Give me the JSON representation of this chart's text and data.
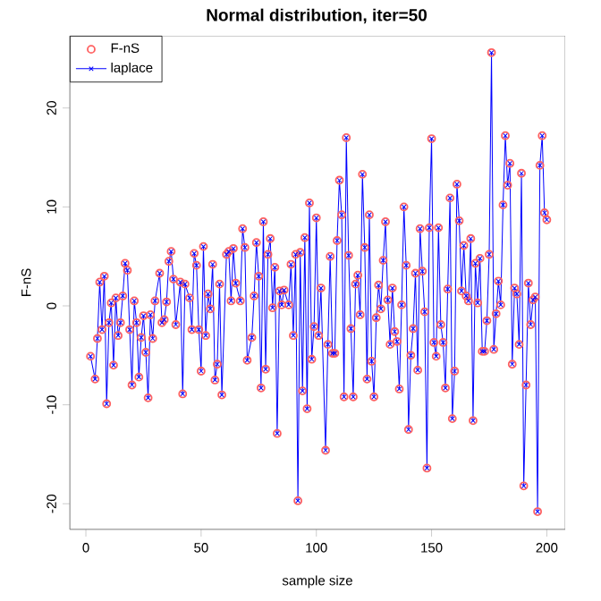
{
  "chart_data": {
    "type": "line",
    "title": "Normal distribution, iter=50",
    "xlabel": "sample size",
    "ylabel": "F-nS",
    "x": [
      2,
      4,
      5,
      6,
      7,
      8,
      9,
      10,
      11,
      12,
      13,
      14,
      15,
      16,
      17,
      18,
      19,
      20,
      21,
      22,
      23,
      24,
      25,
      26,
      27,
      28,
      29,
      30,
      32,
      33,
      34,
      35,
      36,
      37,
      38,
      39,
      41,
      42,
      43,
      45,
      46,
      47,
      48,
      49,
      50,
      51,
      52,
      53,
      54,
      55,
      56,
      57,
      58,
      59,
      61,
      62,
      63,
      64,
      65,
      67,
      68,
      69,
      70,
      72,
      73,
      74,
      75,
      76,
      77,
      78,
      79,
      80,
      81,
      82,
      83,
      84,
      85,
      86,
      88,
      89,
      90,
      91,
      92,
      93,
      94,
      95,
      96,
      97,
      98,
      99,
      100,
      101,
      102,
      104,
      105,
      106,
      107,
      108,
      109,
      110,
      111,
      112,
      113,
      114,
      115,
      116,
      117,
      118,
      119,
      120,
      121,
      122,
      123,
      124,
      125,
      126,
      127,
      128,
      129,
      130,
      131,
      132,
      133,
      134,
      135,
      136,
      137,
      138,
      139,
      140,
      141,
      142,
      143,
      144,
      145,
      146,
      147,
      148,
      149,
      150,
      151,
      152,
      153,
      154,
      155,
      156,
      157,
      158,
      159,
      160,
      161,
      162,
      163,
      164,
      165,
      166,
      167,
      168,
      169,
      170,
      171,
      172,
      173,
      174,
      175,
      176,
      177,
      178,
      179,
      180,
      181,
      182,
      183,
      184,
      185,
      186,
      187,
      188,
      189,
      190,
      191,
      192,
      193,
      194,
      195,
      196,
      197,
      198,
      199,
      200
    ],
    "series": [
      {
        "name": "F-nS",
        "type": "scatter",
        "marker": "circle",
        "color": "#ff6060",
        "values": [
          -5.1,
          -7.4,
          -3.3,
          2.4,
          -2.4,
          3.0,
          -9.9,
          -1.7,
          0.3,
          -6.0,
          0.8,
          -3.0,
          -1.7,
          1.0,
          4.3,
          3.6,
          -2.4,
          -8.0,
          0.5,
          -1.7,
          -7.2,
          -3.2,
          -1.0,
          -4.7,
          -9.3,
          -0.9,
          -3.3,
          0.5,
          3.3,
          -1.7,
          -1.4,
          0.4,
          4.5,
          5.5,
          2.7,
          -1.9,
          2.4,
          -8.9,
          2.2,
          0.8,
          -2.4,
          5.3,
          4.1,
          -2.4,
          -6.6,
          6.0,
          -3.0,
          1.2,
          -0.3,
          4.2,
          -7.5,
          -5.9,
          2.2,
          -9.0,
          5.2,
          5.5,
          0.5,
          5.8,
          2.3,
          0.5,
          7.8,
          5.9,
          -5.5,
          -3.2,
          1.0,
          6.4,
          3.0,
          -8.3,
          8.5,
          -6.4,
          5.2,
          6.8,
          -0.2,
          3.9,
          -12.9,
          1.5,
          0.1,
          1.6,
          0.1,
          4.2,
          -3.0,
          5.2,
          -19.7,
          5.4,
          -8.6,
          6.9,
          -10.4,
          10.4,
          -5.4,
          -2.1,
          8.9,
          -3.0,
          1.8,
          -14.6,
          -3.9,
          5.0,
          -4.8,
          -4.8,
          6.6,
          12.7,
          9.2,
          -9.2,
          17.0,
          5.1,
          -2.3,
          -9.2,
          2.2,
          3.1,
          -0.9,
          13.3,
          5.9,
          -7.4,
          9.2,
          -5.6,
          -9.2,
          -1.2,
          2.1,
          -0.3,
          4.6,
          8.5,
          0.6,
          -3.9,
          1.8,
          -2.6,
          -3.6,
          -8.4,
          0.1,
          10.0,
          4.1,
          -12.5,
          -5.0,
          -2.3,
          3.3,
          -6.5,
          7.8,
          3.5,
          -0.6,
          -16.4,
          7.9,
          16.9,
          -3.7,
          -5.1,
          7.9,
          -1.9,
          -3.7,
          -8.3,
          1.7,
          10.9,
          -11.4,
          -6.6,
          12.3,
          8.6,
          1.5,
          6.1,
          1.0,
          0.5,
          6.8,
          -11.6,
          4.3,
          0.3,
          4.8,
          -4.6,
          -4.6,
          -1.5,
          5.2,
          25.6,
          -4.4,
          -0.8,
          2.5,
          0.1,
          10.2,
          17.2,
          12.2,
          14.4,
          -5.9,
          1.8,
          1.2,
          -3.9,
          13.4,
          -18.2,
          -8.0,
          2.3,
          -1.9,
          0.6,
          0.9,
          -20.8,
          14.2,
          17.2,
          9.4,
          8.7
        ]
      },
      {
        "name": "laplace",
        "marker": "cross",
        "color": "#0000ff",
        "values": [
          -5.1,
          -7.4,
          -3.3,
          2.4,
          -2.4,
          3.0,
          -9.9,
          -1.7,
          0.3,
          -6.0,
          0.8,
          -3.0,
          -1.7,
          1.0,
          4.3,
          3.6,
          -2.4,
          -8.0,
          0.5,
          -1.7,
          -7.2,
          -3.2,
          -1.0,
          -4.7,
          -9.3,
          -0.9,
          -3.3,
          0.5,
          3.3,
          -1.7,
          -1.4,
          0.4,
          4.5,
          5.5,
          2.7,
          -1.9,
          2.4,
          -8.9,
          2.2,
          0.8,
          -2.4,
          5.3,
          4.1,
          -2.4,
          -6.6,
          6.0,
          -3.0,
          1.2,
          -0.3,
          4.2,
          -7.5,
          -5.9,
          2.2,
          -9.0,
          5.2,
          5.5,
          0.5,
          5.8,
          2.3,
          0.5,
          7.8,
          5.9,
          -5.5,
          -3.2,
          1.0,
          6.4,
          3.0,
          -8.3,
          8.5,
          -6.4,
          5.2,
          6.8,
          -0.2,
          3.9,
          -12.9,
          1.5,
          0.1,
          1.6,
          0.1,
          4.2,
          -3.0,
          5.2,
          -19.7,
          5.4,
          -8.6,
          6.9,
          -10.4,
          10.4,
          -5.4,
          -2.1,
          8.9,
          -3.0,
          1.8,
          -14.6,
          -3.9,
          5.0,
          -4.8,
          -4.8,
          6.6,
          12.7,
          9.2,
          -9.2,
          17.0,
          5.1,
          -2.3,
          -9.2,
          2.2,
          3.1,
          -0.9,
          13.3,
          5.9,
          -7.4,
          9.2,
          -5.6,
          -9.2,
          -1.2,
          2.1,
          -0.3,
          4.6,
          8.5,
          0.6,
          -3.9,
          1.8,
          -2.6,
          -3.6,
          -8.4,
          0.1,
          10.0,
          4.1,
          -12.5,
          -5.0,
          -2.3,
          3.3,
          -6.5,
          7.8,
          3.5,
          -0.6,
          -16.4,
          7.9,
          16.9,
          -3.7,
          -5.1,
          7.9,
          -1.9,
          -3.7,
          -8.3,
          1.7,
          10.9,
          -11.4,
          -6.6,
          12.3,
          8.6,
          1.5,
          6.1,
          1.0,
          0.5,
          6.8,
          -11.6,
          4.3,
          0.3,
          4.8,
          -4.6,
          -4.6,
          -1.5,
          5.2,
          25.6,
          -4.4,
          -0.8,
          2.5,
          0.1,
          10.2,
          17.2,
          12.2,
          14.4,
          -5.9,
          1.8,
          1.2,
          -3.9,
          13.4,
          -18.2,
          -8.0,
          2.3,
          -1.9,
          0.6,
          0.9,
          -20.8,
          14.2,
          17.2,
          9.4,
          8.7
        ]
      }
    ],
    "xlim": [
      -7,
      208
    ],
    "ylim": [
      -22.6,
      27.3
    ],
    "xticks": [
      0,
      50,
      100,
      150,
      200
    ],
    "yticks": [
      -20,
      -10,
      0,
      10,
      20
    ],
    "grid": false,
    "legend": "top left"
  }
}
